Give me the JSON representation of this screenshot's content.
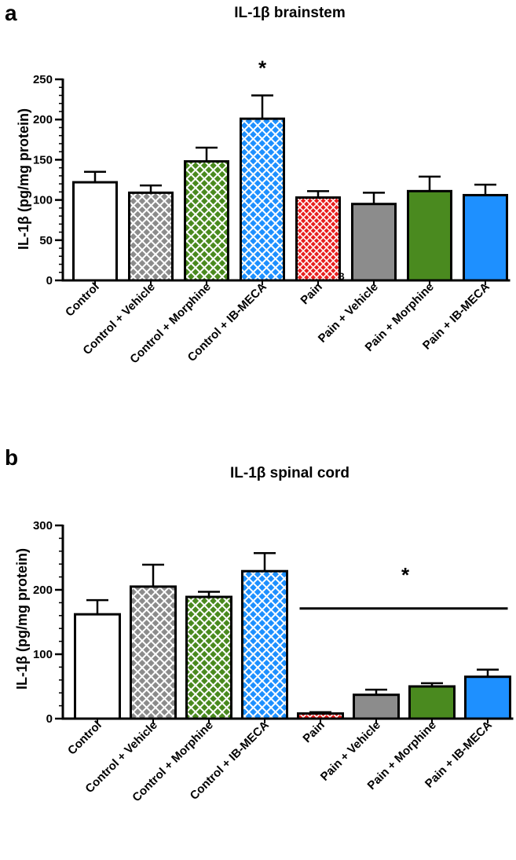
{
  "colors": {
    "axis": "#000000",
    "white": "#ffffff",
    "gray": "#8c8c8c",
    "green": "#4a8a1f",
    "blue": "#1e90ff",
    "red": "#e8201f"
  },
  "chart_data": [
    {
      "type": "bar",
      "panel": "a",
      "title": "IL-1β brainstem",
      "ylabel": "IL-1β (pg/mg protein)",
      "xlabel": "",
      "ylim": [
        0,
        250
      ],
      "yticks": [
        0,
        50,
        100,
        150,
        200,
        250
      ],
      "grid": false,
      "categories": [
        "Control",
        "Control + Vehicle",
        "Control + Morphine",
        "Control + IB-MECA",
        "Pain",
        "Pain + Vehicle",
        "Pain + Morphine",
        "Pain + IB-MECA"
      ],
      "values": [
        122,
        109,
        148,
        201,
        103,
        95,
        111,
        106
      ],
      "errors": [
        13,
        9,
        17,
        29,
        8,
        14,
        18,
        13
      ],
      "fills": [
        "white",
        "gray",
        "green",
        "blue",
        "red",
        "gray",
        "green",
        "blue"
      ],
      "patterns": [
        false,
        true,
        true,
        true,
        true,
        false,
        false,
        false
      ],
      "annotations": [
        {
          "text": "*",
          "category_index": 3
        },
        {
          "text": "B",
          "category_index": 4
        }
      ]
    },
    {
      "type": "bar",
      "panel": "b",
      "title": "IL-1β spinal cord",
      "ylabel": "IL-1β (pg/mg protein)",
      "xlabel": "",
      "ylim": [
        0,
        300
      ],
      "yticks": [
        0,
        100,
        200,
        300
      ],
      "grid": false,
      "categories": [
        "Control",
        "Control + Vehicle",
        "Control + Morphine",
        "Control + IB-MECA",
        "Pain",
        "Pain + Vehicle",
        "Pain + Morphine",
        "Pain + IB-MECA"
      ],
      "values": [
        162,
        205,
        189,
        229,
        8,
        37,
        50,
        65
      ],
      "errors": [
        22,
        34,
        8,
        28,
        2,
        8,
        5,
        11
      ],
      "fills": [
        "white",
        "gray",
        "green",
        "blue",
        "red",
        "gray",
        "green",
        "blue"
      ],
      "patterns": [
        false,
        true,
        true,
        true,
        true,
        false,
        false,
        false
      ],
      "annotations": [
        {
          "text": "*",
          "bracket_from": 4,
          "bracket_to": 7,
          "bracket_value": 171
        }
      ]
    }
  ]
}
